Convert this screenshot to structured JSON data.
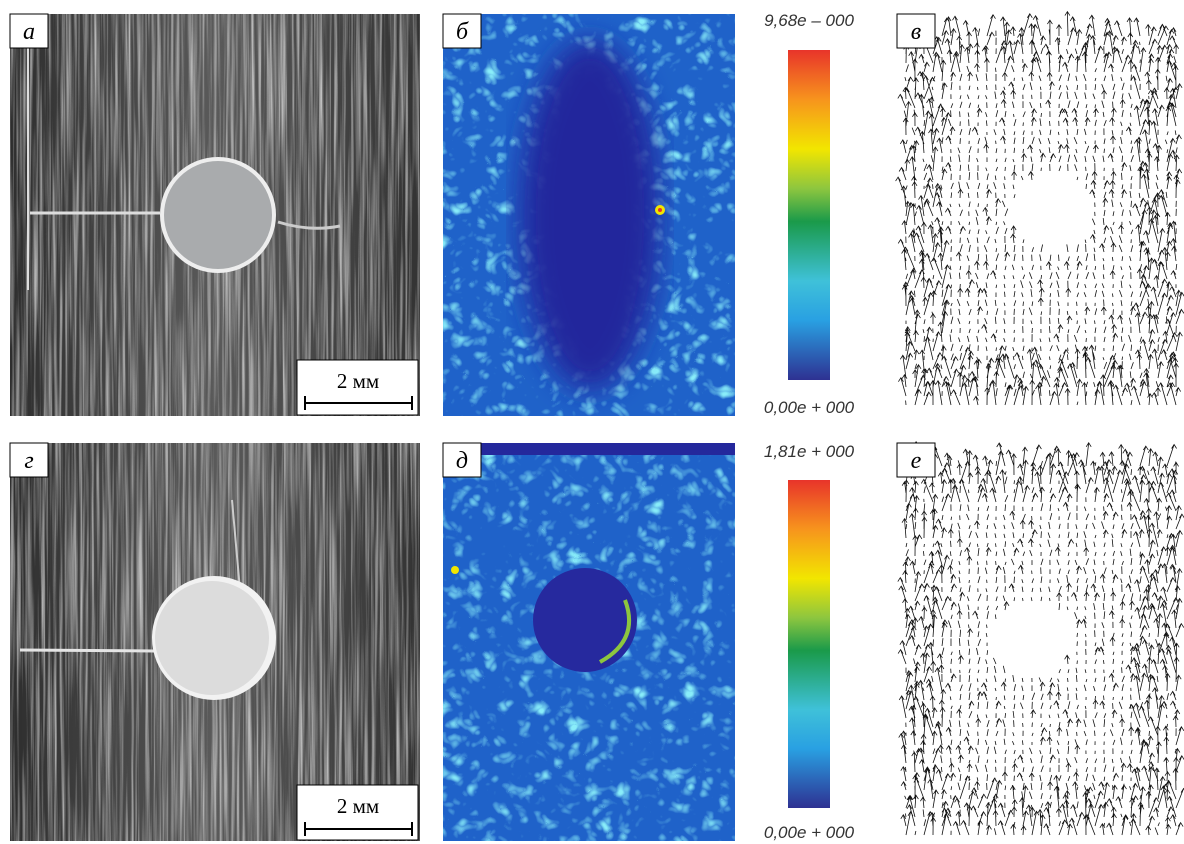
{
  "rows": [
    {
      "photo": {
        "label": "а",
        "scale_bar": "2 мм"
      },
      "strain_map": {
        "label": "б",
        "colorbar_max": "9,68e – 000",
        "colorbar_min": "0,00e + 000"
      },
      "vector_field": {
        "label": "в"
      }
    },
    {
      "photo": {
        "label": "г",
        "scale_bar": "2 мм"
      },
      "strain_map": {
        "label": "д",
        "colorbar_max": "1,81e + 000",
        "colorbar_min": "0,00e + 000"
      },
      "vector_field": {
        "label": "е"
      }
    }
  ]
}
